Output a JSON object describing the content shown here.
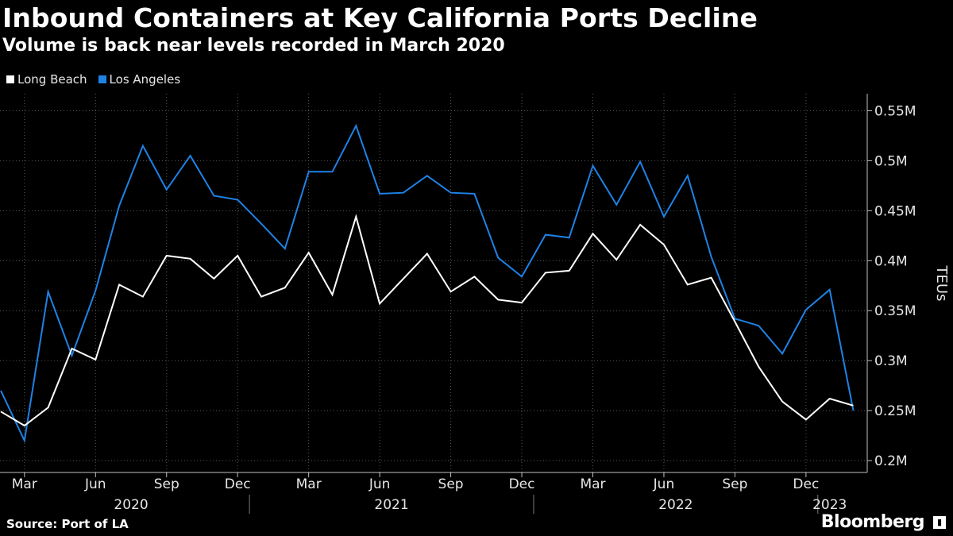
{
  "header": {
    "title": "Inbound Containers at Key California Ports Decline",
    "subtitle": "Volume is back near levels recorded in March 2020"
  },
  "legend": [
    {
      "label": "Long Beach",
      "color": "#ffffff"
    },
    {
      "label": "Los Angeles",
      "color": "#1f82e5"
    }
  ],
  "footer": {
    "source": "Source:  Port of LA",
    "brand": "Bloomberg",
    "brand_icon": "bloomberg-terminal-icon"
  },
  "chart_data": {
    "type": "line",
    "title": "Inbound Containers at Key California Ports Decline",
    "subtitle": "Volume is back near levels recorded in March 2020",
    "ylabel": "TEUs",
    "xlabel": "",
    "ylim": [
      0.2,
      0.56
    ],
    "y_ticks": [
      0.2,
      0.25,
      0.3,
      0.35,
      0.4,
      0.45,
      0.5,
      0.55
    ],
    "y_tick_labels": [
      "0.2M",
      "0.25M",
      "0.3M",
      "0.35M",
      "0.4M",
      "0.45M",
      "0.5M",
      "0.55M"
    ],
    "grid": true,
    "legend_position": "top-left",
    "x": [
      "2020-02",
      "2020-03",
      "2020-04",
      "2020-05",
      "2020-06",
      "2020-07",
      "2020-08",
      "2020-09",
      "2020-10",
      "2020-11",
      "2020-12",
      "2021-01",
      "2021-02",
      "2021-03",
      "2021-04",
      "2021-05",
      "2021-06",
      "2021-07",
      "2021-08",
      "2021-09",
      "2021-10",
      "2021-11",
      "2021-12",
      "2022-01",
      "2022-02",
      "2022-03",
      "2022-04",
      "2022-05",
      "2022-06",
      "2022-07",
      "2022-08",
      "2022-09",
      "2022-10",
      "2022-11",
      "2022-12",
      "2023-01",
      "2023-02"
    ],
    "x_ticks": [
      {
        "index": 1,
        "label": "Mar"
      },
      {
        "index": 4,
        "label": "Jun"
      },
      {
        "index": 7,
        "label": "Sep"
      },
      {
        "index": 10,
        "label": "Dec"
      },
      {
        "index": 13,
        "label": "Mar"
      },
      {
        "index": 16,
        "label": "Jun"
      },
      {
        "index": 19,
        "label": "Sep"
      },
      {
        "index": 22,
        "label": "Dec"
      },
      {
        "index": 25,
        "label": "Mar"
      },
      {
        "index": 28,
        "label": "Jun"
      },
      {
        "index": 31,
        "label": "Sep"
      },
      {
        "index": 34,
        "label": "Dec"
      }
    ],
    "year_labels": [
      {
        "label": "2020",
        "start": 1,
        "end": 11
      },
      {
        "label": "2021",
        "start": 11,
        "end": 23
      },
      {
        "label": "2022",
        "start": 23,
        "end": 35
      },
      {
        "label": "2023",
        "start": 35,
        "end": 36
      }
    ],
    "series": [
      {
        "name": "Long Beach",
        "color": "#ffffff",
        "values": [
          0.249,
          0.235,
          0.253,
          0.312,
          0.301,
          0.376,
          0.364,
          0.405,
          0.402,
          0.382,
          0.405,
          0.364,
          0.373,
          0.408,
          0.366,
          0.444,
          0.357,
          0.382,
          0.407,
          0.369,
          0.384,
          0.361,
          0.358,
          0.388,
          0.39,
          0.427,
          0.401,
          0.436,
          0.416,
          0.376,
          0.383,
          0.339,
          0.294,
          0.259,
          0.241,
          0.262,
          0.255
        ]
      },
      {
        "name": "Los Angeles",
        "color": "#1f82e5",
        "values": [
          0.27,
          0.22,
          0.369,
          0.305,
          0.37,
          0.455,
          0.515,
          0.471,
          0.505,
          0.465,
          0.461,
          0.437,
          0.412,
          0.489,
          0.489,
          0.535,
          0.467,
          0.468,
          0.485,
          0.468,
          0.467,
          0.403,
          0.384,
          0.426,
          0.423,
          0.495,
          0.456,
          0.499,
          0.444,
          0.485,
          0.404,
          0.342,
          0.335,
          0.307,
          0.351,
          0.371,
          0.25
        ]
      }
    ]
  }
}
